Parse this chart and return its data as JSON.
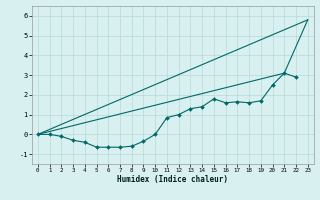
{
  "title": "",
  "xlabel": "Humidex (Indice chaleur)",
  "bg_color": "#d8f0f0",
  "grid_color": "#b8d8d8",
  "line_color": "#006868",
  "xlim": [
    -0.5,
    23.5
  ],
  "ylim": [
    -1.5,
    6.5
  ],
  "xticks": [
    0,
    1,
    2,
    3,
    4,
    5,
    6,
    7,
    8,
    9,
    10,
    11,
    12,
    13,
    14,
    15,
    16,
    17,
    18,
    19,
    20,
    21,
    22,
    23
  ],
  "yticks": [
    -1,
    0,
    1,
    2,
    3,
    4,
    5,
    6
  ],
  "line1_x": [
    0,
    1,
    2,
    3,
    4,
    5,
    6,
    7,
    8,
    9,
    10,
    11,
    12,
    13,
    14,
    15,
    16,
    17,
    18,
    19,
    20,
    21,
    22
  ],
  "line1_y": [
    0.0,
    0.0,
    -0.1,
    -0.3,
    -0.4,
    -0.65,
    -0.65,
    -0.65,
    -0.6,
    -0.35,
    0.0,
    0.85,
    1.0,
    1.3,
    1.4,
    1.8,
    1.6,
    1.65,
    1.6,
    1.7,
    2.5,
    3.1,
    2.9
  ],
  "line2_x": [
    0,
    23
  ],
  "line2_y": [
    0.0,
    5.8
  ],
  "line3_x": [
    0,
    21,
    23
  ],
  "line3_y": [
    0.0,
    3.1,
    5.8
  ]
}
